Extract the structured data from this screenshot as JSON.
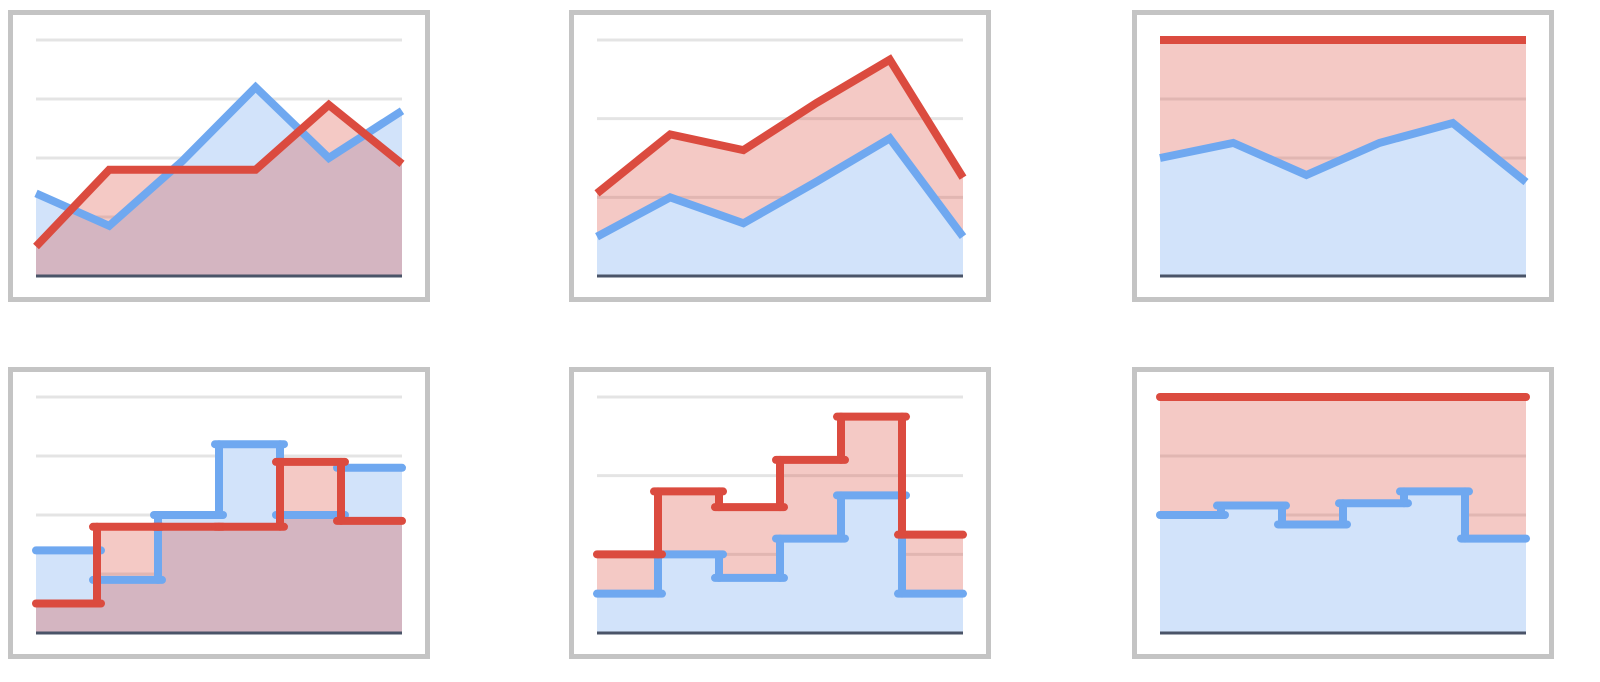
{
  "chart_data": [
    {
      "type": "area",
      "stacking": "none",
      "ylim": [
        0,
        4
      ],
      "yticks": [
        0,
        1,
        2,
        3,
        4
      ],
      "grid": true,
      "series": [
        {
          "color": "#6fa8f0",
          "values": [
            1.4,
            0.85,
            1.95,
            3.2,
            2.0,
            2.8
          ]
        },
        {
          "color": "#db4b3f",
          "values": [
            0.5,
            1.8,
            1.8,
            1.8,
            2.9,
            1.9
          ]
        }
      ]
    },
    {
      "type": "area",
      "stacking": "stacked",
      "ylim": [
        0,
        3
      ],
      "yticks": [
        0,
        1,
        2,
        3
      ],
      "grid": true,
      "series": [
        {
          "color": "#6fa8f0",
          "values": [
            0.5,
            1.0,
            0.67,
            1.2,
            1.75,
            0.5
          ]
        },
        {
          "color": "#db4b3f",
          "values": [
            0.55,
            0.8,
            0.93,
            1.0,
            1.0,
            0.75
          ]
        }
      ]
    },
    {
      "type": "area",
      "stacking": "percent",
      "ylim": [
        0,
        100
      ],
      "yticks": [
        0,
        25,
        50,
        75,
        100
      ],
      "grid": true,
      "series": [
        {
          "color": "#6fa8f0",
          "values": [
            50,
            56.4,
            42.8,
            56.4,
            64.8,
            39.8
          ]
        },
        {
          "color": "#db4b3f",
          "values": [
            50,
            43.6,
            57.2,
            43.6,
            35.2,
            60.2
          ]
        }
      ]
    },
    {
      "type": "stepped-area",
      "stacking": "none",
      "ylim": [
        0,
        4
      ],
      "yticks": [
        0,
        1,
        2,
        3,
        4
      ],
      "grid": true,
      "series": [
        {
          "color": "#6fa8f0",
          "values": [
            1.4,
            0.9,
            2.0,
            3.2,
            2.0,
            2.8
          ]
        },
        {
          "color": "#db4b3f",
          "values": [
            0.5,
            1.8,
            1.8,
            1.8,
            2.9,
            1.9
          ]
        }
      ]
    },
    {
      "type": "stepped-area",
      "stacking": "stacked",
      "ylim": [
        0,
        3
      ],
      "yticks": [
        0,
        1,
        2,
        3
      ],
      "grid": true,
      "series": [
        {
          "color": "#6fa8f0",
          "values": [
            0.5,
            1.0,
            0.7,
            1.2,
            1.75,
            0.5
          ]
        },
        {
          "color": "#db4b3f",
          "values": [
            0.5,
            0.8,
            0.9,
            1.0,
            1.0,
            0.75
          ]
        }
      ]
    },
    {
      "type": "stepped-area",
      "stacking": "percent",
      "ylim": [
        0,
        100
      ],
      "yticks": [
        0,
        25,
        50,
        75,
        100
      ],
      "grid": true,
      "series": [
        {
          "color": "#6fa8f0",
          "values": [
            50,
            54,
            46,
            55,
            60,
            40
          ]
        },
        {
          "color": "#db4b3f",
          "values": [
            50,
            46,
            54,
            45,
            40,
            60
          ]
        }
      ]
    }
  ]
}
